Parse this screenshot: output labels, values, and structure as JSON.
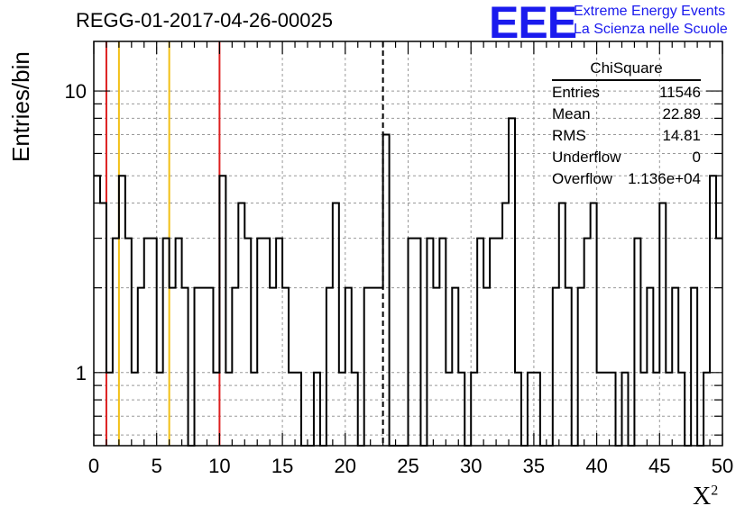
{
  "title": "REGG-01-2017-04-26-00025",
  "logo": {
    "mark": "EEE",
    "line1": "Extreme Energy Events",
    "line2": "La Scienza nelle Scuole"
  },
  "stats": {
    "title": "ChiSquare",
    "rows": [
      {
        "label": "Entries",
        "value": "11546"
      },
      {
        "label": "Mean",
        "value": "22.89"
      },
      {
        "label": "RMS",
        "value": "14.81"
      },
      {
        "label": "Underflow",
        "value": "0"
      },
      {
        "label": "Overflow",
        "value": "1.136e+04"
      }
    ]
  },
  "chart_data": {
    "type": "histogram",
    "xlabel": "X",
    "xlabel_sup": "2",
    "ylabel": "Entries/bin",
    "xlim": [
      0,
      50
    ],
    "ylim": [
      0.55,
      15
    ],
    "yscale": "log",
    "grid": true,
    "bin_width": 0.5,
    "x_ticks": [
      0,
      5,
      10,
      15,
      20,
      25,
      30,
      35,
      40,
      45,
      50
    ],
    "y_ticks": [
      1,
      10
    ],
    "values": [
      5,
      4,
      1,
      3,
      5,
      3,
      1,
      2,
      3,
      3,
      1,
      3,
      2,
      3,
      2,
      0,
      2,
      2,
      2,
      1,
      5,
      1,
      2,
      4,
      3,
      1,
      3,
      3,
      2,
      3,
      2,
      1,
      1,
      0,
      0,
      1,
      0,
      2,
      4,
      1,
      2,
      1,
      0,
      2,
      2,
      2,
      7,
      0,
      0,
      0,
      3,
      3,
      0,
      3,
      2,
      3,
      1,
      2,
      1,
      0,
      1,
      3,
      2,
      3,
      3,
      4,
      8,
      1,
      0,
      1,
      1,
      0,
      0,
      2,
      4,
      2,
      0,
      2,
      3,
      4,
      1,
      1,
      1,
      0,
      1,
      0,
      3,
      1,
      2,
      1,
      4,
      1,
      2,
      1,
      0,
      2,
      0,
      1,
      5,
      3
    ],
    "vlines": [
      {
        "x": 1,
        "color": "#dd1f1f",
        "style": "solid"
      },
      {
        "x": 2,
        "color": "#f2bf14",
        "style": "solid"
      },
      {
        "x": 6,
        "color": "#f2bf14",
        "style": "solid"
      },
      {
        "x": 10,
        "color": "#dd1f1f",
        "style": "solid"
      },
      {
        "x": 23,
        "color": "#000000",
        "style": "dashed"
      }
    ]
  }
}
